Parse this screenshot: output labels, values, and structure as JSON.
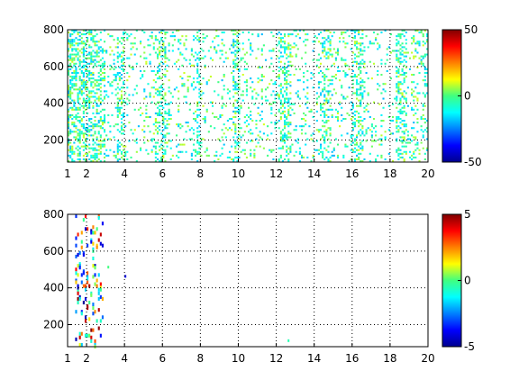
{
  "chart_data": [
    {
      "type": "heatmap",
      "title": "",
      "xlabel": "",
      "ylabel": "",
      "xlim": [
        1,
        20
      ],
      "ylim": [
        80,
        800
      ],
      "xticks": [
        1,
        2,
        4,
        6,
        8,
        10,
        12,
        14,
        16,
        18,
        20
      ],
      "yticks": [
        200,
        400,
        600,
        800
      ],
      "grid": true,
      "colorbar": {
        "min": -50,
        "max": 50,
        "ticks": [
          -50,
          0,
          50
        ]
      },
      "colormap": "jet",
      "description_of_values": "dense sparse field of small values near 0 (cyan-green-yellow), columns of strong activity near x=2-3, 6, 10, 12.5, 14.5, 16, 18.5"
    },
    {
      "type": "heatmap",
      "title": "",
      "xlabel": "",
      "ylabel": "",
      "xlim": [
        1,
        20
      ],
      "ylim": [
        80,
        800
      ],
      "xticks": [
        1,
        2,
        4,
        6,
        8,
        10,
        12,
        14,
        16,
        18,
        20
      ],
      "yticks": [
        200,
        400,
        600,
        800
      ],
      "grid": true,
      "colorbar": {
        "min": -5,
        "max": 5,
        "ticks": [
          -5,
          0,
          5
        ]
      },
      "colormap": "jet",
      "description_of_values": "very sparse; activity concentrated around x=1.5-2.8, isolated points near x=4 and x=12.6"
    }
  ]
}
